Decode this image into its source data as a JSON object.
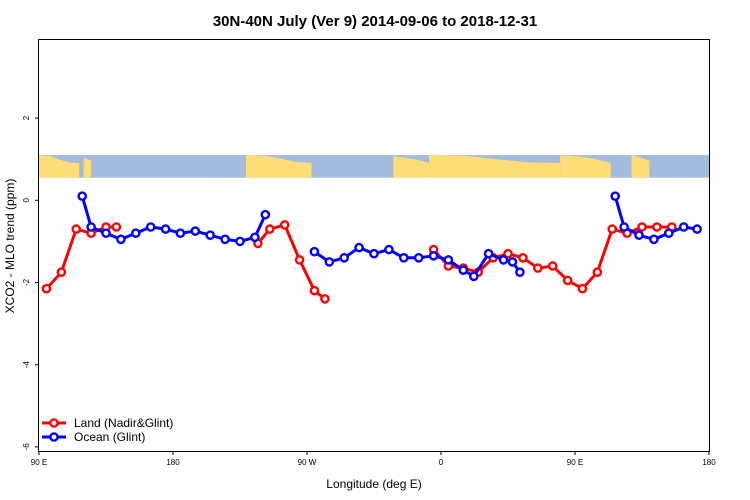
{
  "chart_data": {
    "type": "line",
    "title": "30N-40N July (Ver 9)   2014-09-06 to 2018-12-31",
    "xlabel": "Longitude (deg E)",
    "ylabel": "XCO2 - MLO trend (ppm)",
    "xlim": [
      90,
      540
    ],
    "ylim": [
      -6.1,
      3.9
    ],
    "x_ticks": [
      {
        "value": 90,
        "label": "90 E"
      },
      {
        "value": 180,
        "label": "180"
      },
      {
        "value": 270,
        "label": "90 W"
      },
      {
        "value": 360,
        "label": "0"
      },
      {
        "value": 450,
        "label": "90 E"
      },
      {
        "value": 540,
        "label": "180"
      }
    ],
    "y_ticks": [
      {
        "value": 2,
        "label": "2"
      },
      {
        "value": 0,
        "label": "0"
      },
      {
        "value": -2,
        "label": "-2"
      },
      {
        "value": -4,
        "label": "-4"
      },
      {
        "value": -6,
        "label": "-6"
      }
    ],
    "map_strip": {
      "y_top": 1.1,
      "y_bottom": 0.55,
      "description": "world map band 30N-40N"
    },
    "series": [
      {
        "name": "Land (Nadir&Glint)",
        "color": "#ff0000",
        "segments": [
          {
            "x": [
              95,
              105,
              115,
              125,
              135,
              142
            ],
            "y": [
              -2.15,
              -1.75,
              -0.7,
              -0.8,
              -0.65,
              -0.65
            ]
          },
          {
            "x": [
              237,
              245,
              255,
              265,
              275,
              282
            ],
            "y": [
              -1.05,
              -0.7,
              -0.6,
              -1.45,
              -2.2,
              -2.4
            ]
          },
          {
            "x": [
              355,
              365,
              375,
              385,
              395,
              405,
              415,
              425,
              435,
              445,
              455,
              465,
              475,
              485,
              495,
              505,
              515
            ],
            "y": [
              -1.2,
              -1.6,
              -1.65,
              -1.75,
              -1.4,
              -1.3,
              -1.4,
              -1.65,
              -1.6,
              -1.95,
              -2.15,
              -1.75,
              -0.7,
              -0.8,
              -0.65,
              -0.65,
              -0.65
            ]
          }
        ]
      },
      {
        "name": "Ocean (Glint)",
        "color": "#0000ff",
        "segments": [
          {
            "x": [
              119,
              125,
              135,
              145,
              155,
              165,
              175,
              185,
              195,
              205,
              215,
              225,
              235,
              242
            ],
            "y": [
              0.1,
              -0.65,
              -0.8,
              -0.95,
              -0.8,
              -0.65,
              -0.7,
              -0.8,
              -0.75,
              -0.85,
              -0.95,
              -1.0,
              -0.9,
              -0.35
            ]
          },
          {
            "x": [
              275,
              285,
              295,
              305,
              315,
              325,
              335,
              345,
              355,
              365,
              375,
              382,
              392,
              402,
              408,
              413
            ],
            "y": [
              -1.25,
              -1.5,
              -1.4,
              -1.15,
              -1.3,
              -1.2,
              -1.4,
              -1.4,
              -1.35,
              -1.45,
              -1.7,
              -1.85,
              -1.3,
              -1.45,
              -1.5,
              -1.75
            ]
          },
          {
            "x": [
              477,
              483,
              493,
              503,
              513,
              523,
              532
            ],
            "y": [
              0.1,
              -0.65,
              -0.85,
              -0.95,
              -0.8,
              -0.65,
              -0.7
            ]
          }
        ]
      }
    ],
    "legend_position": "bottom-left"
  }
}
